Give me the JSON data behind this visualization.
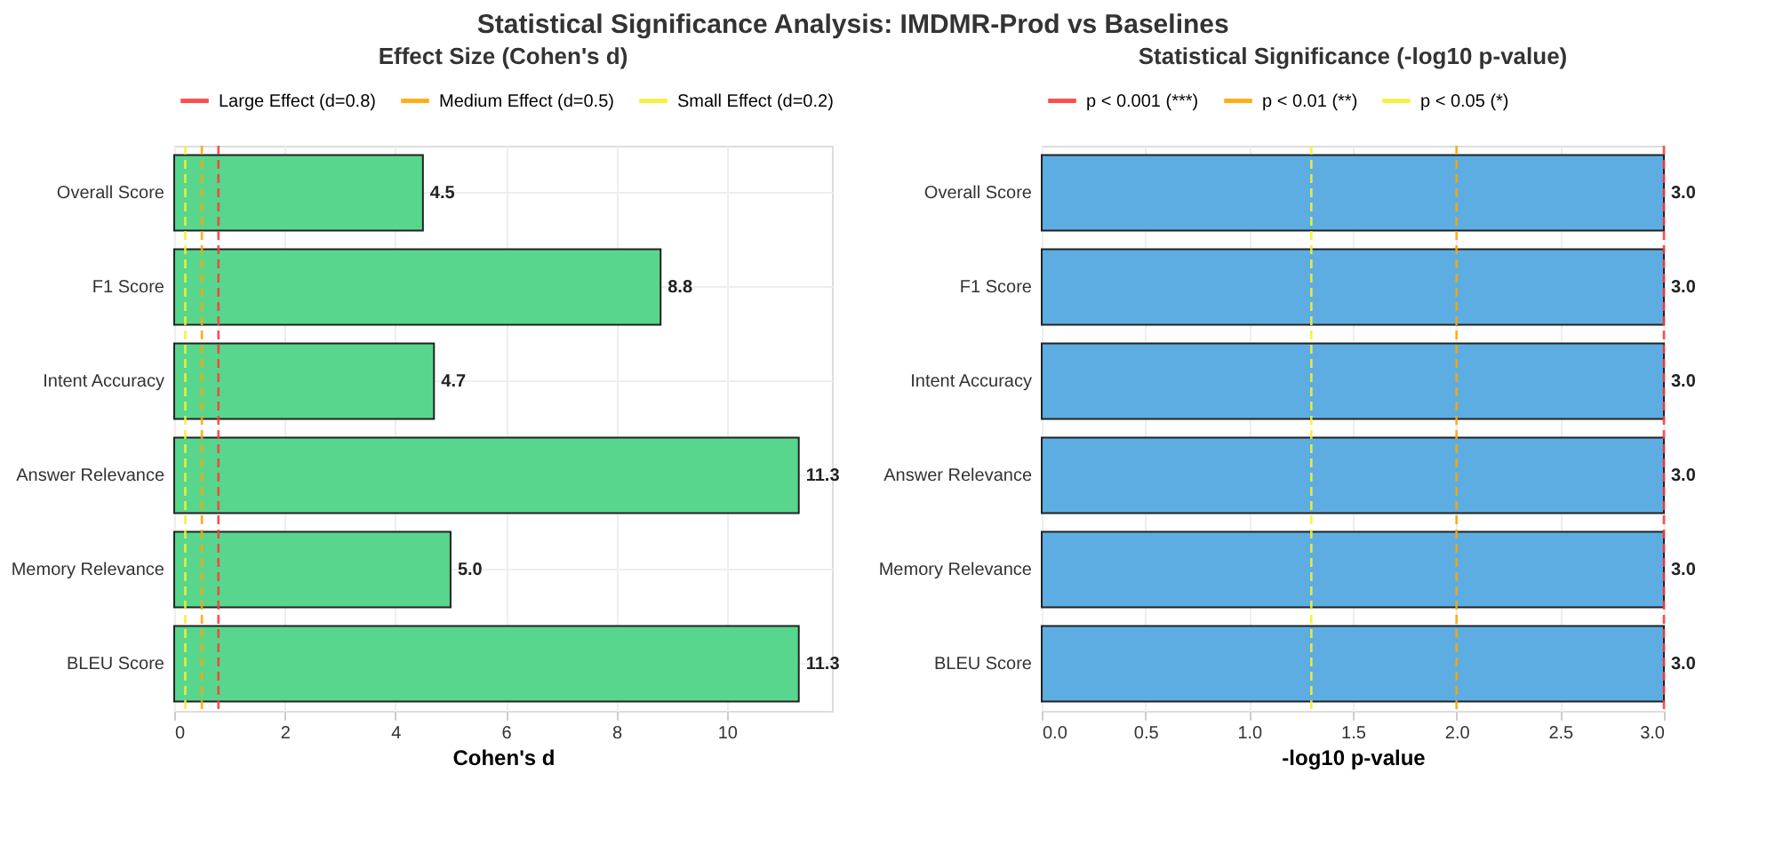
{
  "chart_data": [
    {
      "type": "bar",
      "orientation": "horizontal",
      "title": "Effect Size (Cohen's d)",
      "xlabel": "Cohen's d",
      "annotations": [
        "Statistical Significance Analysis: IMDMR-Prod vs Baselines"
      ],
      "categories": [
        "Overall Score",
        "F1 Score",
        "Intent Accuracy",
        "Answer Relevance",
        "Memory Relevance",
        "BLEU Score"
      ],
      "values": [
        4.5,
        8.8,
        4.7,
        11.3,
        5.0,
        11.3
      ],
      "value_labels": [
        "4.5",
        "8.8",
        "4.7",
        "11.3",
        "5.0",
        "11.3"
      ],
      "color": "#58d68d",
      "xlim": [
        0,
        11.9
      ],
      "xticks": [
        0,
        2,
        4,
        6,
        8,
        10
      ],
      "ref_lines": [
        {
          "axis": "x",
          "value": 0.8,
          "label": "Large Effect (d=0.8)",
          "color": "#ff3b3b",
          "line_style": "dashed"
        },
        {
          "axis": "x",
          "value": 0.5,
          "label": "Medium Effect (d=0.5)",
          "color": "#ffa500",
          "line_style": "dashed"
        },
        {
          "axis": "x",
          "value": 0.2,
          "label": "Small Effect (d=0.2)",
          "color": "#f5f032",
          "line_style": "dashed"
        }
      ],
      "grid": true,
      "legend": "top"
    },
    {
      "type": "bar",
      "orientation": "horizontal",
      "title": "Statistical Significance (-log10 p-value)",
      "xlabel": "-log10 p-value",
      "categories": [
        "Overall Score",
        "F1 Score",
        "Intent Accuracy",
        "Answer Relevance",
        "Memory Relevance",
        "BLEU Score"
      ],
      "values": [
        3.0,
        3.0,
        3.0,
        3.0,
        3.0,
        3.0
      ],
      "value_labels": [
        "3.0",
        "3.0",
        "3.0",
        "3.0",
        "3.0",
        "3.0"
      ],
      "color": "#5dade2",
      "xlim": [
        0,
        3.0
      ],
      "xticks": [
        {
          "value": 0,
          "label": "0.0"
        },
        {
          "value": 0.5,
          "label": "0.5"
        },
        {
          "value": 1,
          "label": "1.0"
        },
        {
          "value": 1.5,
          "label": "1.5"
        },
        {
          "value": 2,
          "label": "2.0"
        },
        {
          "value": 2.5,
          "label": "2.5"
        },
        {
          "value": 3,
          "label": "3.0"
        }
      ],
      "ref_lines": [
        {
          "axis": "x",
          "value": 3.0,
          "label": "p < 0.001 (***)",
          "color": "#ff3b3b",
          "line_style": "dashed"
        },
        {
          "axis": "x",
          "value": 2.0,
          "label": "p < 0.01 (**)",
          "color": "#ffa500",
          "line_style": "dashed"
        },
        {
          "axis": "x",
          "value": 1.3,
          "label": "p < 0.05 (*)",
          "color": "#f5f032",
          "line_style": "dashed"
        }
      ],
      "grid": true,
      "legend": "top"
    }
  ]
}
